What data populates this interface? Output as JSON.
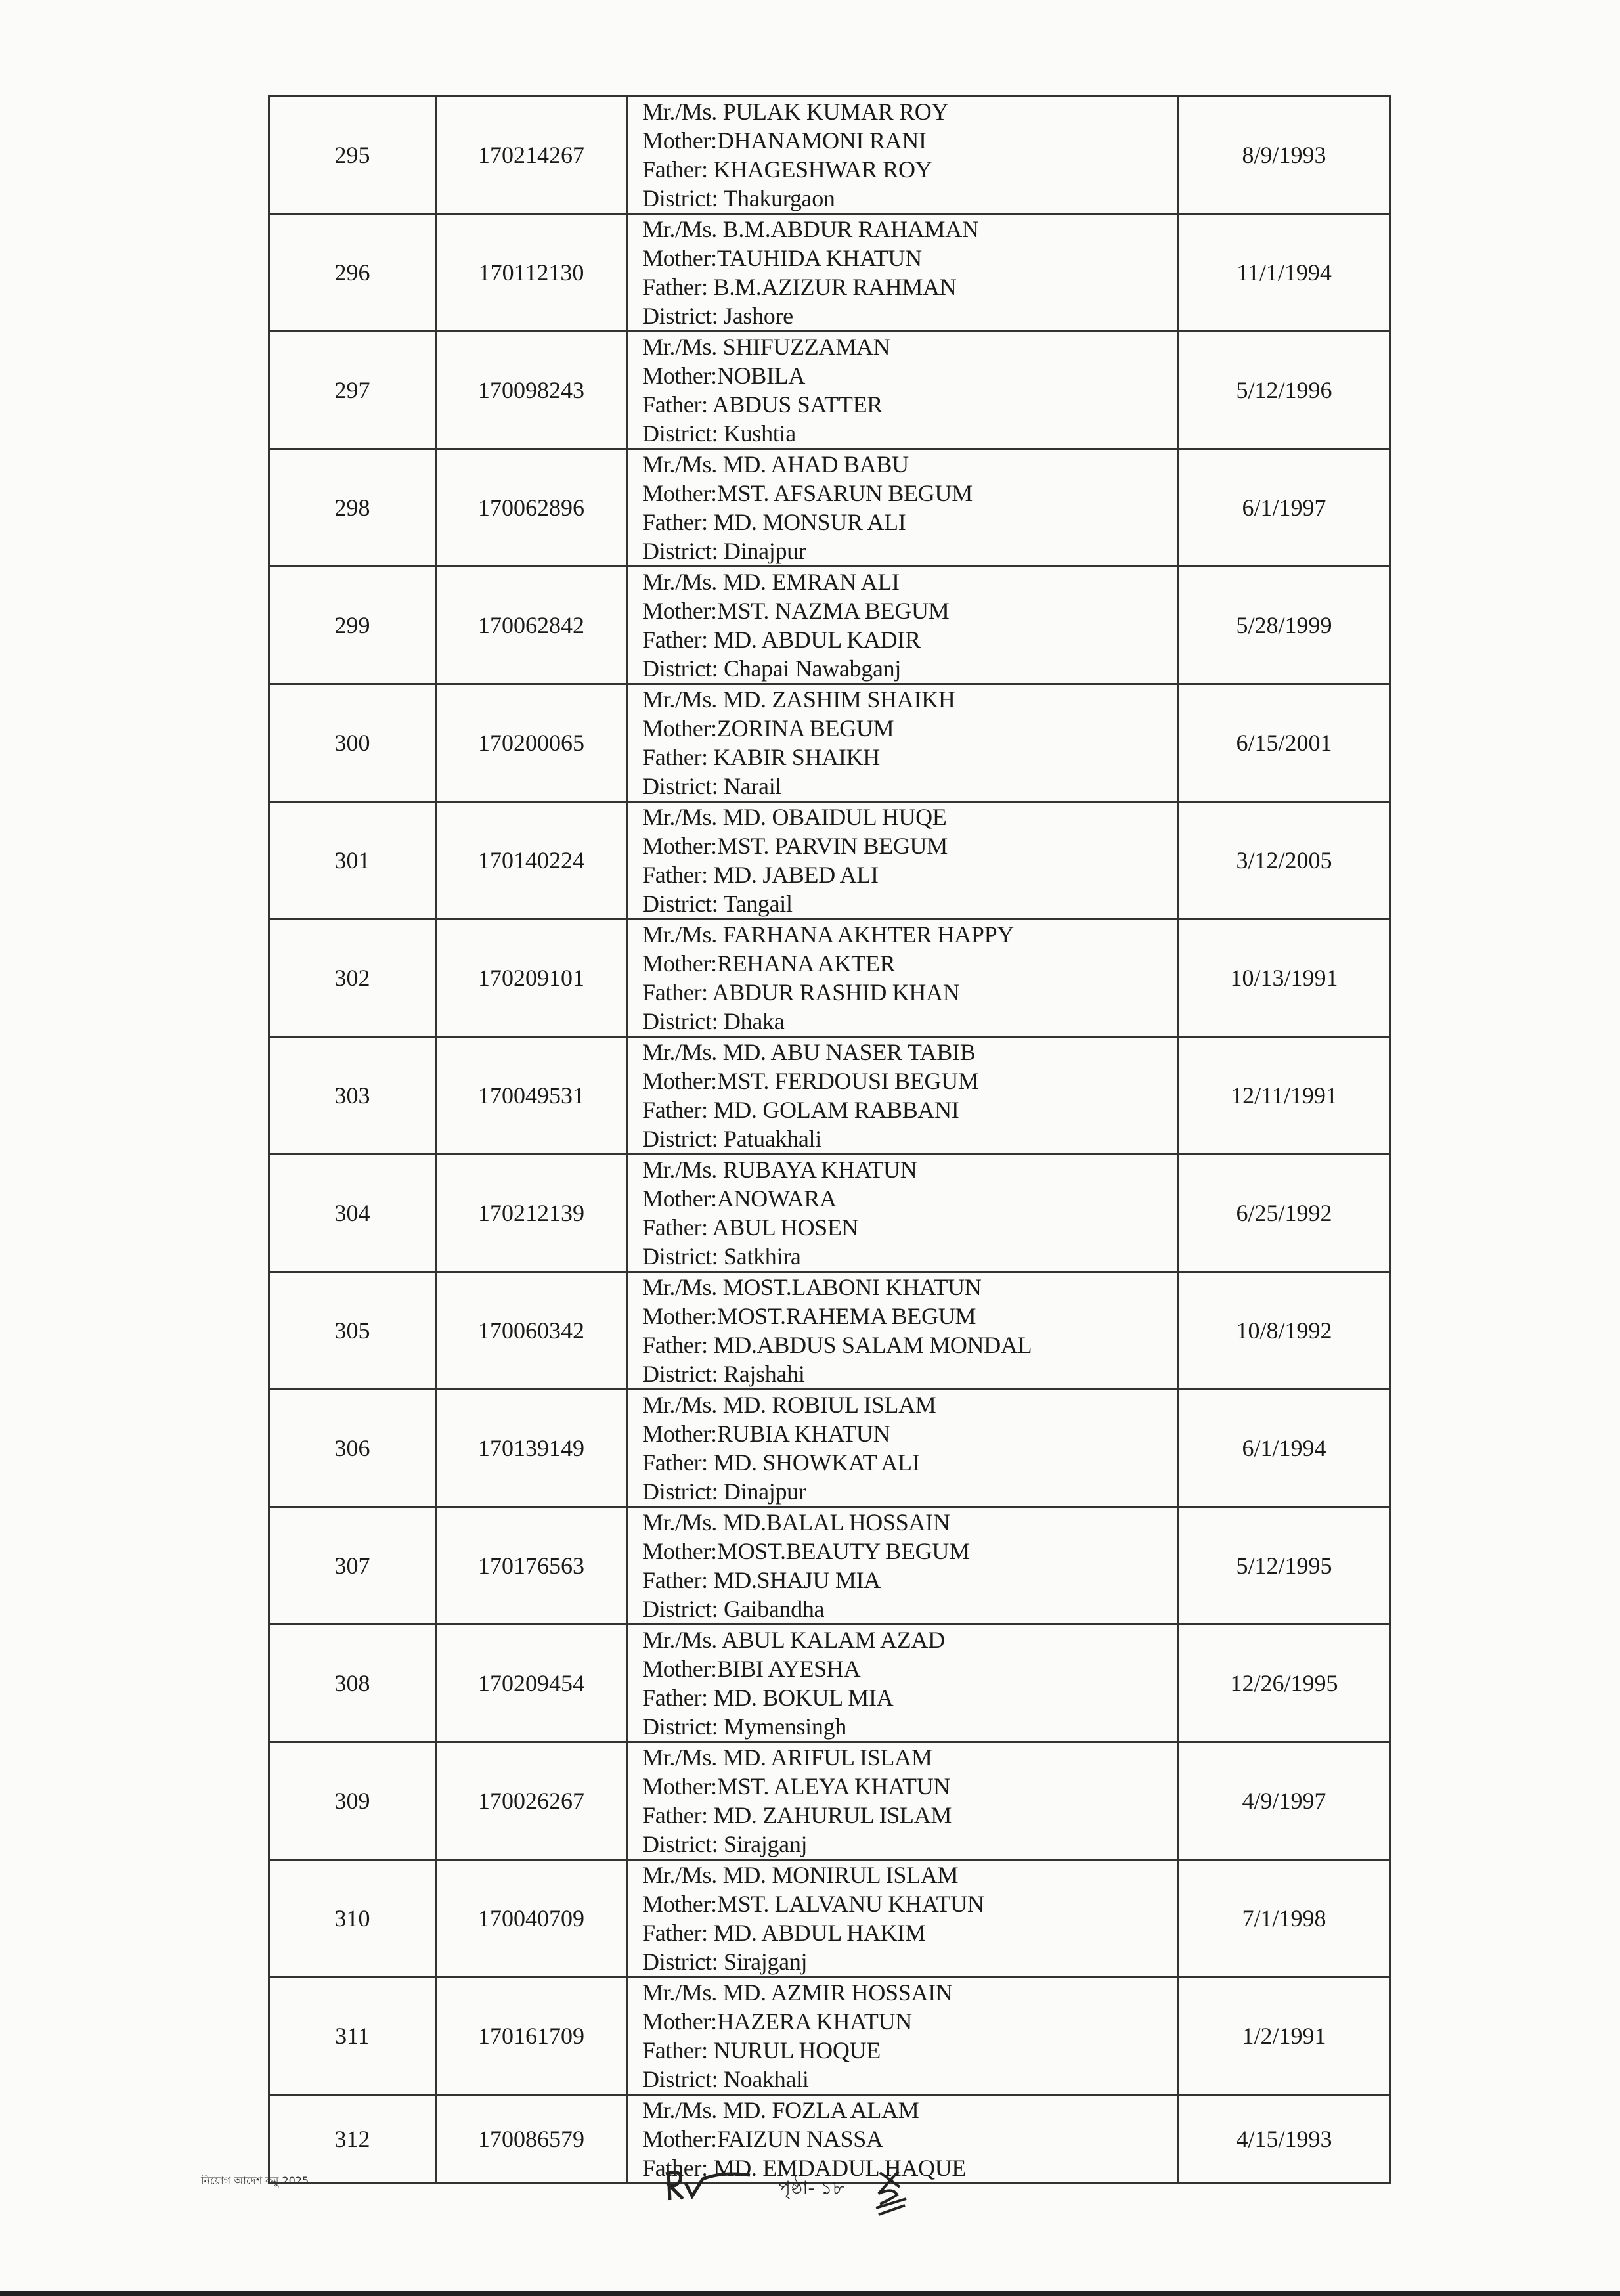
{
  "rows": [
    {
      "sl": "295",
      "roll": "170214267",
      "name": "Mr./Ms. PULAK KUMAR ROY",
      "mother": "Mother:DHANAMONI RANI",
      "father": "Father: KHAGESHWAR ROY",
      "district": "District: Thakurgaon",
      "dob": "8/9/1993"
    },
    {
      "sl": "296",
      "roll": "170112130",
      "name": "Mr./Ms. B.M.ABDUR RAHAMAN",
      "mother": "Mother:TAUHIDA KHATUN",
      "father": "Father: B.M.AZIZUR RAHMAN",
      "district": "District: Jashore",
      "dob": "11/1/1994"
    },
    {
      "sl": "297",
      "roll": "170098243",
      "name": "Mr./Ms. SHIFUZZAMAN",
      "mother": "Mother:NOBILA",
      "father": "Father: ABDUS SATTER",
      "district": "District: Kushtia",
      "dob": "5/12/1996"
    },
    {
      "sl": "298",
      "roll": "170062896",
      "name": "Mr./Ms. MD. AHAD BABU",
      "mother": "Mother:MST. AFSARUN BEGUM",
      "father": "Father: MD. MONSUR ALI",
      "district": "District: Dinajpur",
      "dob": "6/1/1997"
    },
    {
      "sl": "299",
      "roll": "170062842",
      "name": "Mr./Ms. MD. EMRAN ALI",
      "mother": "Mother:MST. NAZMA BEGUM",
      "father": "Father: MD. ABDUL KADIR",
      "district": "District: Chapai Nawabganj",
      "dob": "5/28/1999"
    },
    {
      "sl": "300",
      "roll": "170200065",
      "name": "Mr./Ms. MD. ZASHIM SHAIKH",
      "mother": "Mother:ZORINA BEGUM",
      "father": "Father: KABIR SHAIKH",
      "district": "District: Narail",
      "dob": "6/15/2001"
    },
    {
      "sl": "301",
      "roll": "170140224",
      "name": "Mr./Ms. MD. OBAIDUL HUQE",
      "mother": "Mother:MST. PARVIN BEGUM",
      "father": "Father: MD. JABED ALI",
      "district": "District: Tangail",
      "dob": "3/12/2005"
    },
    {
      "sl": "302",
      "roll": "170209101",
      "name": "Mr./Ms. FARHANA AKHTER HAPPY",
      "mother": "Mother:REHANA AKTER",
      "father": "Father: ABDUR RASHID KHAN",
      "district": "District: Dhaka",
      "dob": "10/13/1991"
    },
    {
      "sl": "303",
      "roll": "170049531",
      "name": "Mr./Ms. MD. ABU NASER TABIB",
      "mother": "Mother:MST. FERDOUSI BEGUM",
      "father": "Father: MD. GOLAM RABBANI",
      "district": "District: Patuakhali",
      "dob": "12/11/1991"
    },
    {
      "sl": "304",
      "roll": "170212139",
      "name": "Mr./Ms. RUBAYA KHATUN",
      "mother": "Mother:ANOWARA",
      "father": "Father: ABUL HOSEN",
      "district": "District: Satkhira",
      "dob": "6/25/1992"
    },
    {
      "sl": "305",
      "roll": "170060342",
      "name": "Mr./Ms. MOST.LABONI KHATUN",
      "mother": "Mother:MOST.RAHEMA BEGUM",
      "father": "Father: MD.ABDUS SALAM MONDAL",
      "district": "District: Rajshahi",
      "dob": "10/8/1992"
    },
    {
      "sl": "306",
      "roll": "170139149",
      "name": "Mr./Ms. MD. ROBIUL ISLAM",
      "mother": "Mother:RUBIA KHATUN",
      "father": "Father: MD. SHOWKAT ALI",
      "district": "District: Dinajpur",
      "dob": "6/1/1994"
    },
    {
      "sl": "307",
      "roll": "170176563",
      "name": "Mr./Ms. MD.BALAL HOSSAIN",
      "mother": "Mother:MOST.BEAUTY BEGUM",
      "father": "Father: MD.SHAJU MIA",
      "district": "District: Gaibandha",
      "dob": "5/12/1995"
    },
    {
      "sl": "308",
      "roll": "170209454",
      "name": "Mr./Ms. ABUL KALAM AZAD",
      "mother": "Mother:BIBI AYESHA",
      "father": "Father: MD. BOKUL MIA",
      "district": "District: Mymensingh",
      "dob": "12/26/1995"
    },
    {
      "sl": "309",
      "roll": "170026267",
      "name": "Mr./Ms. MD. ARIFUL ISLAM",
      "mother": "Mother:MST. ALEYA KHATUN",
      "father": "Father: MD. ZAHURUL ISLAM",
      "district": "District: Sirajganj",
      "dob": "4/9/1997"
    },
    {
      "sl": "310",
      "roll": "170040709",
      "name": "Mr./Ms. MD. MONIRUL ISLAM",
      "mother": "Mother:MST. LALVANU KHATUN",
      "father": "Father: MD. ABDUL HAKIM",
      "district": "District: Sirajganj",
      "dob": "7/1/1998"
    },
    {
      "sl": "311",
      "roll": "170161709",
      "name": "Mr./Ms. MD. AZMIR HOSSAIN",
      "mother": "Mother:HAZERA KHATUN",
      "father": "Father: NURUL HOQUE",
      "district": "District: Noakhali",
      "dob": "1/2/1991"
    },
    {
      "sl": "312",
      "roll": "170086579",
      "name": "Mr./Ms. MD. FOZLA ALAM",
      "mother": "Mother:FAIZUN NASSA",
      "father": "Father: MD. EMDADUL HAQUE",
      "district": "",
      "dob": "4/15/1993"
    }
  ],
  "footer": {
    "left_note": "নিয়োগ আদেশ কমু 2025",
    "page_number": "পৃষ্ঠা- ১৮"
  }
}
